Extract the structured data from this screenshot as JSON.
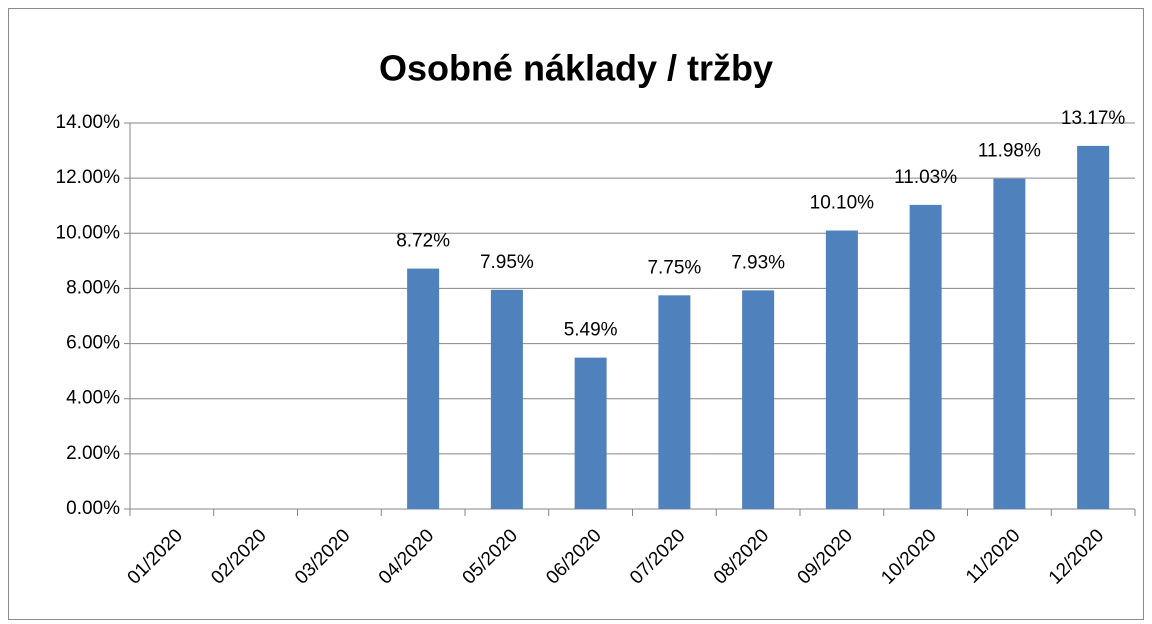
{
  "chart_data": {
    "type": "bar",
    "title": "Osobné náklady / tržby",
    "categories": [
      "01/2020",
      "02/2020",
      "03/2020",
      "04/2020",
      "05/2020",
      "06/2020",
      "07/2020",
      "08/2020",
      "09/2020",
      "10/2020",
      "11/2020",
      "12/2020"
    ],
    "values": [
      null,
      null,
      null,
      8.72,
      7.95,
      5.49,
      7.75,
      7.93,
      10.1,
      11.03,
      11.98,
      13.17
    ],
    "value_labels": [
      null,
      null,
      null,
      "8.72%",
      "7.95%",
      "5.49%",
      "7.75%",
      "7.93%",
      "10.10%",
      "11.03%",
      "11.98%",
      "13.17%"
    ],
    "color": "#4f81bd",
    "ylim": [
      0,
      14
    ],
    "yticks": [
      {
        "value": 0,
        "label": "0.00%"
      },
      {
        "value": 2,
        "label": "2.00%"
      },
      {
        "value": 4,
        "label": "4.00%"
      },
      {
        "value": 6,
        "label": "6.00%"
      },
      {
        "value": 8,
        "label": "8.00%"
      },
      {
        "value": 10,
        "label": "10.00%"
      },
      {
        "value": 12,
        "label": "12.00%"
      },
      {
        "value": 14,
        "label": "14.00%"
      }
    ],
    "grid": true
  }
}
